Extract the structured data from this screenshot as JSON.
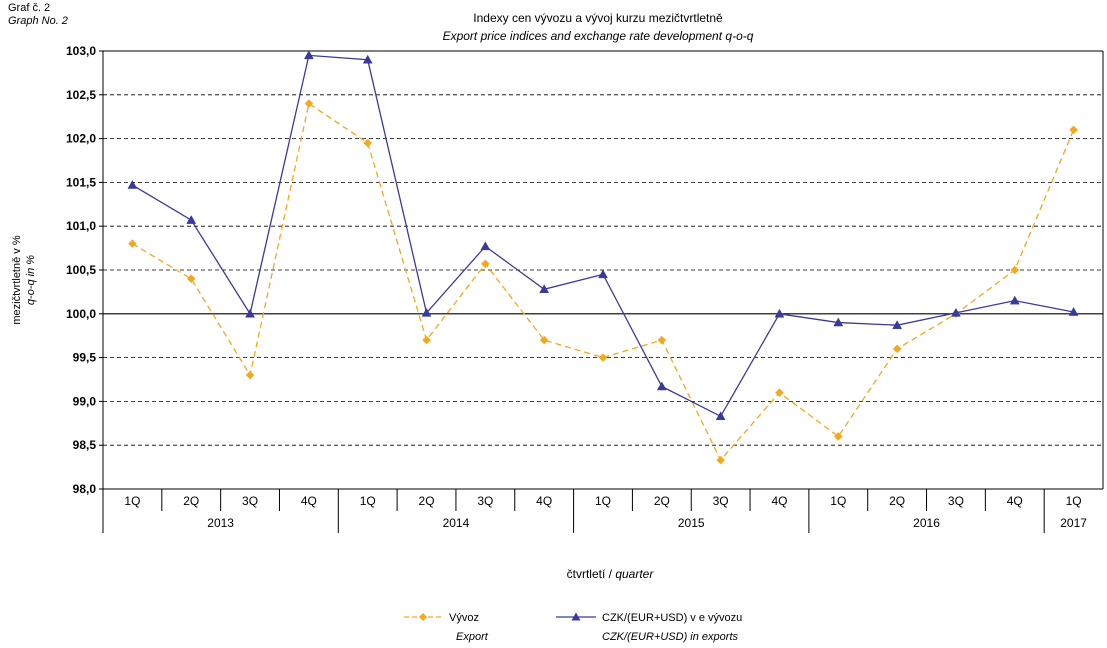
{
  "header": {
    "graf_cz": "Graf č. 2",
    "graf_en": "Graph No. 2"
  },
  "colors": {
    "export": "#F5A81B",
    "czk": "#3A3A9C",
    "grid": "#000000",
    "background": "#ffffff"
  },
  "chart_data": {
    "type": "line",
    "title": "Indexy cen vývozu a vývoj kurzu mezičtvrtletně",
    "subtitle": "Export price indices and exchange rate development q-o-q",
    "ylabel": "mezičtvrtletně v %",
    "ylabel_en": "q-o-q in %",
    "xlabel": "čtvrtletí",
    "xlabel_en": "quarter",
    "ylim": [
      98.0,
      103.0
    ],
    "ytick_values": [
      98.0,
      98.5,
      99.0,
      99.5,
      100.0,
      100.5,
      101.0,
      101.5,
      102.0,
      102.5,
      103.0
    ],
    "ytick_labels": [
      "98,0",
      "98,5",
      "99,0",
      "99,5",
      "100,0",
      "100,5",
      "101,0",
      "101,5",
      "102,0",
      "102,5",
      "103,0"
    ],
    "categories": [
      "1Q",
      "2Q",
      "3Q",
      "4Q",
      "1Q",
      "2Q",
      "3Q",
      "4Q",
      "1Q",
      "2Q",
      "3Q",
      "4Q",
      "1Q",
      "2Q",
      "3Q",
      "4Q",
      "1Q"
    ],
    "years": [
      {
        "label": "2013",
        "count": 4
      },
      {
        "label": "2014",
        "count": 4
      },
      {
        "label": "2015",
        "count": 4
      },
      {
        "label": "2016",
        "count": 4
      },
      {
        "label": "2017",
        "count": 1
      }
    ],
    "grid": true,
    "legend_position": "bottom",
    "series": [
      {
        "name": "Vývoz",
        "name_en": "Export",
        "marker": "diamond",
        "line": "dashed",
        "values": [
          100.8,
          100.4,
          99.3,
          102.4,
          101.95,
          99.7,
          100.57,
          99.7,
          99.5,
          99.7,
          98.33,
          99.1,
          98.6,
          99.6,
          100.0,
          100.5,
          102.1
        ]
      },
      {
        "name": "CZK/(EUR+USD) v e vývozu",
        "name_en": "CZK/(EUR+USD) in exports",
        "marker": "triangle",
        "line": "solid",
        "values": [
          101.47,
          101.07,
          100.0,
          102.95,
          102.9,
          100.01,
          100.77,
          100.28,
          100.45,
          99.17,
          98.83,
          100.0,
          99.9,
          99.87,
          100.01,
          100.15,
          100.02
        ]
      }
    ]
  }
}
